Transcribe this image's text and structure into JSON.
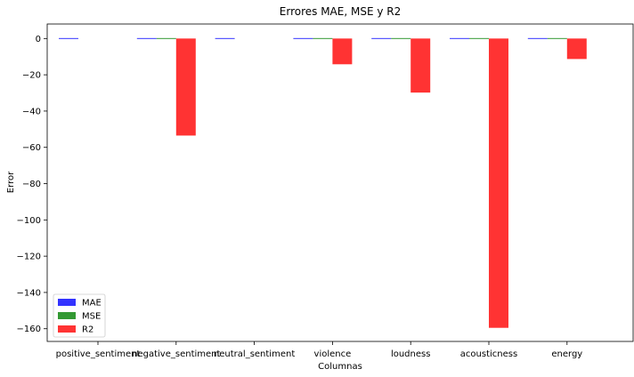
{
  "chart_data": {
    "type": "bar",
    "title": "Errores MAE, MSE y R2",
    "xlabel": "Columnas",
    "ylabel": "Error",
    "categories": [
      "positive_sentiment",
      "negative_sentiment",
      "neutral_sentiment",
      "violence",
      "loudness",
      "acousticness",
      "energy"
    ],
    "series": [
      {
        "name": "MAE",
        "color": "#0000ff",
        "values": [
          0.3,
          0.4,
          0.3,
          0.3,
          0.3,
          0.3,
          0.3
        ]
      },
      {
        "name": "MSE",
        "color": "#008000",
        "values": [
          null,
          0.2,
          null,
          0.2,
          0.2,
          0.2,
          0.2
        ]
      },
      {
        "name": "R2",
        "color": "#ff0000",
        "values": [
          null,
          -53.5,
          null,
          -14.2,
          -29.8,
          -159.5,
          -11.3
        ]
      }
    ],
    "ylim": [
      -167,
      8
    ],
    "yticks": [
      0,
      -20,
      -40,
      -60,
      -80,
      -100,
      -120,
      -140,
      -160
    ],
    "legend": "lower-left",
    "grid": false
  }
}
